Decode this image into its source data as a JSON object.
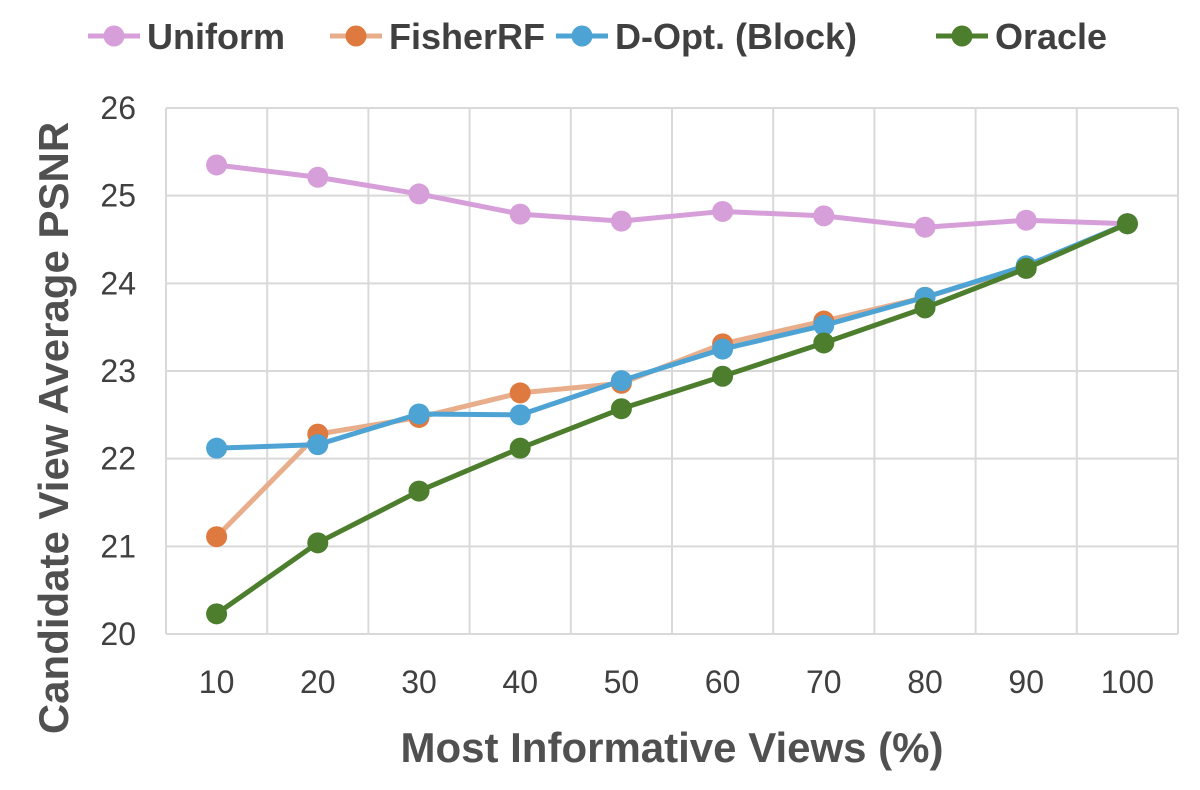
{
  "chart_data": {
    "type": "line",
    "title": "",
    "xlabel": "Most Informative Views (%)",
    "ylabel": "Candidate View Average PSNR",
    "categories": [
      "10",
      "20",
      "30",
      "40",
      "50",
      "60",
      "70",
      "80",
      "90",
      "100"
    ],
    "x": [
      10,
      20,
      30,
      40,
      50,
      60,
      70,
      80,
      90,
      100
    ],
    "yticks": [
      "20",
      "21",
      "22",
      "23",
      "24",
      "25",
      "26"
    ],
    "ylim": [
      20,
      26
    ],
    "grid": true,
    "legend_position": "top",
    "series": [
      {
        "name": "Uniform",
        "color": "#d79fd9",
        "values": [
          25.35,
          25.21,
          25.02,
          24.79,
          24.71,
          24.82,
          24.77,
          24.64,
          24.72,
          24.68
        ]
      },
      {
        "name": "FisherRF",
        "line_color": "#e8ae8c",
        "marker_color": "#de7a3f",
        "values": [
          21.11,
          22.28,
          22.47,
          22.75,
          22.86,
          23.31,
          23.57,
          23.84,
          24.19,
          24.68
        ]
      },
      {
        "name": "D-Opt. (Block)",
        "color": "#4da3d3",
        "values": [
          22.12,
          22.16,
          22.51,
          22.5,
          22.89,
          23.25,
          23.52,
          23.84,
          24.2,
          24.68
        ]
      },
      {
        "name": "Oracle",
        "color": "#4d7e2e",
        "values": [
          20.23,
          21.04,
          21.63,
          22.12,
          22.57,
          22.94,
          23.32,
          23.72,
          24.17,
          24.68
        ]
      }
    ]
  }
}
